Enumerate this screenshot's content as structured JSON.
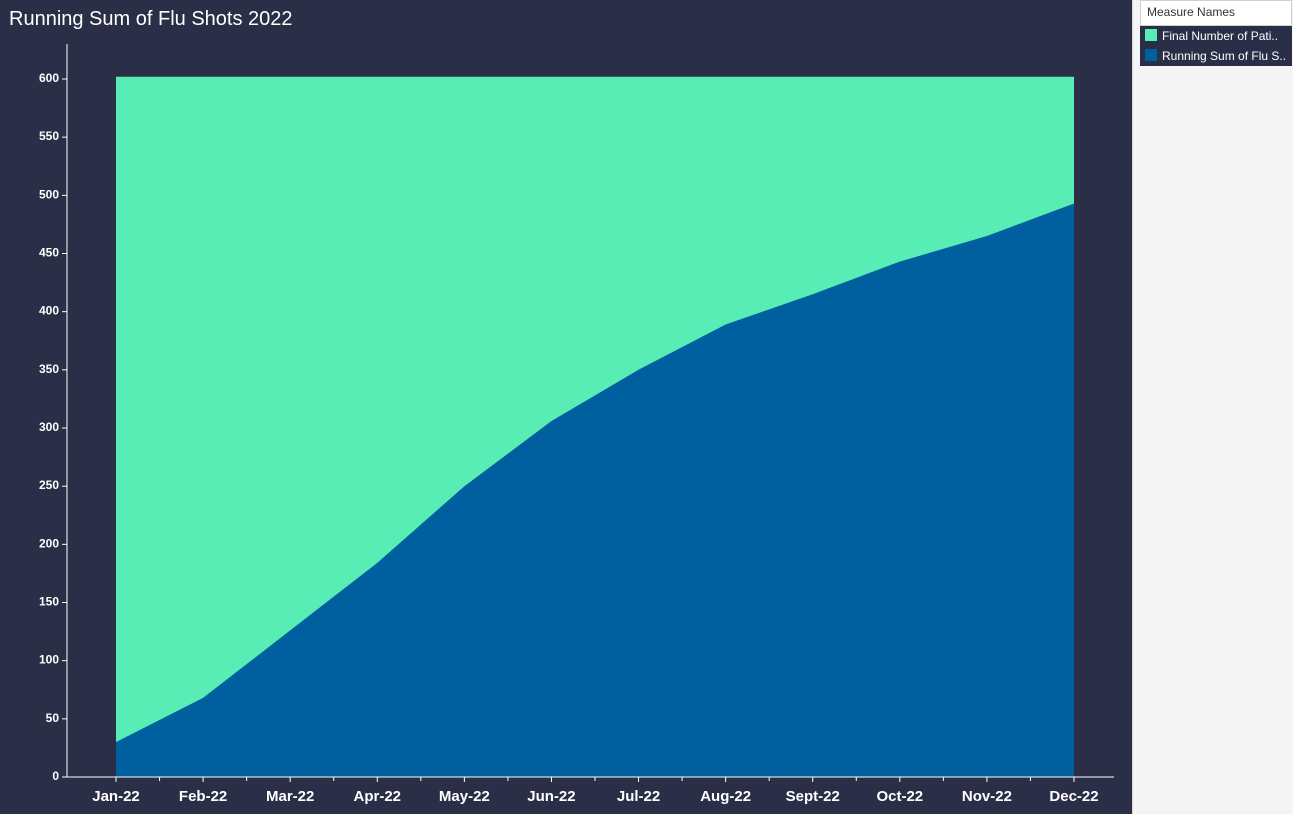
{
  "legend": {
    "title": "Measure Names",
    "items": [
      {
        "label": "Final Number of Pati..",
        "color": "#57edb4"
      },
      {
        "label": "Running Sum of Flu S..",
        "color": "#005f9e"
      }
    ]
  },
  "colors": {
    "background": "#2b2e47",
    "axis": "#ffffff",
    "final_area": "#57edb4",
    "running_area": "#005f9e"
  },
  "chart_data": {
    "type": "area",
    "title": "Running Sum of Flu Shots 2022",
    "xlabel": "",
    "ylabel": "",
    "categories": [
      "Jan-22",
      "Feb-22",
      "Mar-22",
      "Apr-22",
      "May-22",
      "Jun-22",
      "Jul-22",
      "Aug-22",
      "Sept-22",
      "Oct-22",
      "Nov-22",
      "Dec-22"
    ],
    "series": [
      {
        "name": "Final Number of Pati..",
        "values": [
          602,
          602,
          602,
          602,
          602,
          602,
          602,
          602,
          602,
          602,
          602,
          602
        ]
      },
      {
        "name": "Running Sum of Flu S..",
        "values": [
          30,
          68,
          126,
          184,
          250,
          306,
          350,
          389,
          415,
          443,
          465,
          493
        ]
      }
    ],
    "ylim": [
      0,
      600
    ],
    "yticks": [
      0,
      50,
      100,
      150,
      200,
      250,
      300,
      350,
      400,
      450,
      500,
      550,
      600
    ],
    "grid": false,
    "legend_position": "right"
  }
}
